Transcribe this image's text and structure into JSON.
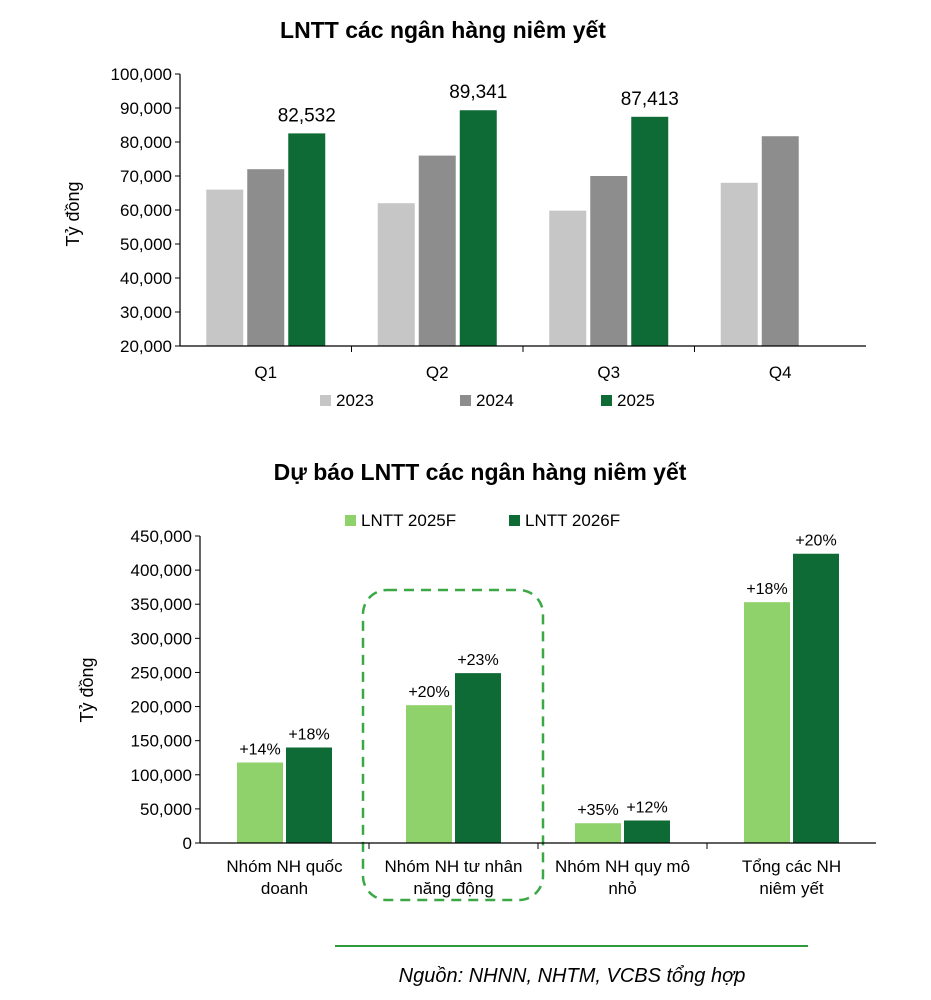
{
  "chart_data": [
    {
      "type": "bar",
      "title": "LNTT các ngân hàng niêm yết",
      "ylabel": "Tỷ đồng",
      "ylim": [
        20000,
        100000
      ],
      "yticks": [
        "20,000",
        "30,000",
        "40,000",
        "50,000",
        "60,000",
        "70,000",
        "80,000",
        "90,000",
        "100,000"
      ],
      "categories": [
        "Q1",
        "Q2",
        "Q3",
        "Q4"
      ],
      "series": [
        {
          "name": "2023",
          "color": "#c6c6c6",
          "values": [
            66000,
            62000,
            59800,
            68000
          ]
        },
        {
          "name": "2024",
          "color": "#8d8d8d",
          "values": [
            72000,
            76000,
            70000,
            81700
          ]
        },
        {
          "name": "2025",
          "color": "#0f6b35",
          "values": [
            82532,
            89341,
            87413,
            null
          ]
        }
      ],
      "data_labels": [
        {
          "series": 2,
          "index": 0,
          "text": "82,532"
        },
        {
          "series": 2,
          "index": 1,
          "text": "89,341"
        },
        {
          "series": 2,
          "index": 2,
          "text": "87,413"
        }
      ],
      "legend": "bottom",
      "grid": false
    },
    {
      "type": "bar",
      "title": "Dự báo LNTT các ngân hàng niêm yết",
      "ylabel": "Tỷ đồng",
      "ylim": [
        0,
        450000
      ],
      "yticks": [
        "0",
        "50,000",
        "100,000",
        "150,000",
        "200,000",
        "250,000",
        "300,000",
        "350,000",
        "400,000",
        "450,000"
      ],
      "categories": [
        [
          "Nhóm NH quốc",
          "doanh"
        ],
        [
          "Nhóm NH tư nhân",
          "năng động"
        ],
        [
          "Nhóm NH quy mô",
          "nhỏ"
        ],
        [
          "Tổng các NH",
          "niêm yết"
        ]
      ],
      "series": [
        {
          "name": "LNTT 2025F",
          "color": "#8fd16a",
          "values": [
            118000,
            202000,
            29000,
            353000
          ],
          "labels": [
            "+14%",
            "+20%",
            "+35%",
            "+18%"
          ]
        },
        {
          "name": "LNTT 2026F",
          "color": "#0f6b35",
          "values": [
            140000,
            249000,
            33000,
            424000
          ],
          "labels": [
            "+18%",
            "+23%",
            "+12%",
            "+20%"
          ]
        }
      ],
      "highlight_category": 1,
      "legend": "top",
      "grid": false
    }
  ],
  "source": "Nguồn: NHNN, NHTM, VCBS tổng hợp",
  "colors": {
    "highlight_border": "#3aa845",
    "source_rule": "#2e9b3f"
  }
}
